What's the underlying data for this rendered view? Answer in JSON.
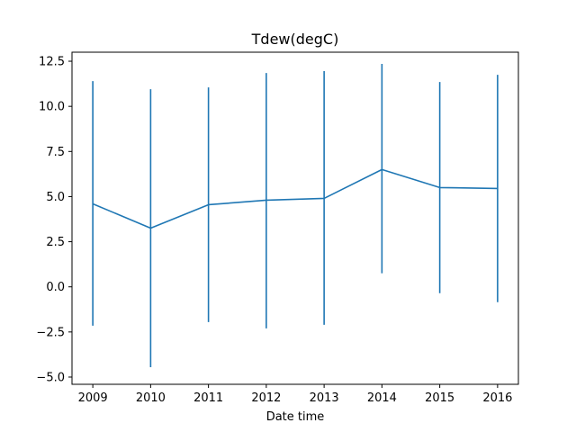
{
  "chart_data": {
    "type": "line",
    "title": "Tdew(degC)",
    "xlabel": "Date time",
    "ylabel": "",
    "x": [
      "2009",
      "2010",
      "2011",
      "2012",
      "2013",
      "2014",
      "2015",
      "2016"
    ],
    "series": [
      {
        "values": [
          4.6,
          3.25,
          4.55,
          4.8,
          4.9,
          6.5,
          5.5,
          5.45
        ],
        "error_low": [
          -2.15,
          -4.45,
          -1.95,
          -2.3,
          -2.1,
          0.75,
          -0.35,
          -0.85
        ],
        "error_high": [
          11.4,
          10.95,
          11.05,
          11.85,
          11.95,
          12.35,
          11.35,
          11.75
        ]
      }
    ],
    "xlim": [
      2008.64,
      2016.36
    ],
    "ylim": [
      -5.4,
      13.0
    ],
    "yticks": [
      "−5.0",
      "−2.5",
      "0.0",
      "2.5",
      "5.0",
      "7.5",
      "10.0",
      "12.5"
    ],
    "yticks_values": [
      -5.0,
      -2.5,
      0.0,
      2.5,
      5.0,
      7.5,
      10.0,
      12.5
    ],
    "grid": false,
    "colors": {
      "series": "#1f77b4",
      "axes": "#000000",
      "background": "#ffffff"
    }
  }
}
